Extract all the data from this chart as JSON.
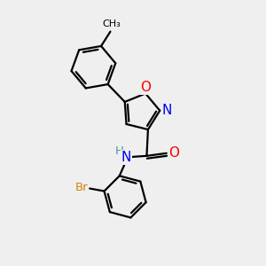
{
  "bg_color": "#efefef",
  "bond_color": "#000000",
  "bond_width": 1.6,
  "atom_colors": {
    "O": "#ff0000",
    "N": "#0000ff",
    "Br": "#cc8800",
    "H": "#4d9999",
    "C": "#000000"
  },
  "font_size": 9.5,
  "fig_size": [
    3.0,
    3.0
  ],
  "dpi": 100
}
